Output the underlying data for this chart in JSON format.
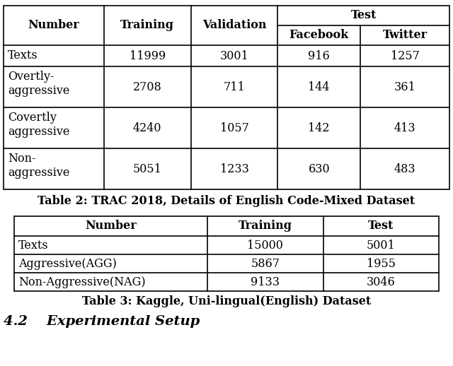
{
  "table1": {
    "caption": "Table 2: TRAC 2018, Details of English Code-Mixed Dataset",
    "col_headers_span": [
      "Number",
      "Training",
      "Validation"
    ],
    "test_header": "Test",
    "subheaders": [
      "Facebook",
      "Twitter"
    ],
    "rows": [
      [
        "Texts",
        "11999",
        "3001",
        "916",
        "1257"
      ],
      [
        "Overtly-\naggressive",
        "2708",
        "711",
        "144",
        "361"
      ],
      [
        "Covertly\naggressive",
        "4240",
        "1057",
        "142",
        "413"
      ],
      [
        "Non-\naggressive",
        "5051",
        "1233",
        "630",
        "483"
      ]
    ]
  },
  "table2": {
    "caption": "Table 3: Kaggle, Uni-lingual(English) Dataset",
    "headers": [
      "Number",
      "Training",
      "Test"
    ],
    "rows": [
      [
        "Texts",
        "15000",
        "5001"
      ],
      [
        "Aggressive(AGG)",
        "5867",
        "1955"
      ],
      [
        "Non-Aggressive(NAG)",
        "9133",
        "3046"
      ]
    ]
  },
  "bg_color": "#ffffff",
  "text_color": "#000000",
  "font_size": 11.5,
  "header_font_size": 11.5,
  "caption_font_size": 11.5,
  "section_title": "4.2    Experimental Setup",
  "section_font_size": 14
}
